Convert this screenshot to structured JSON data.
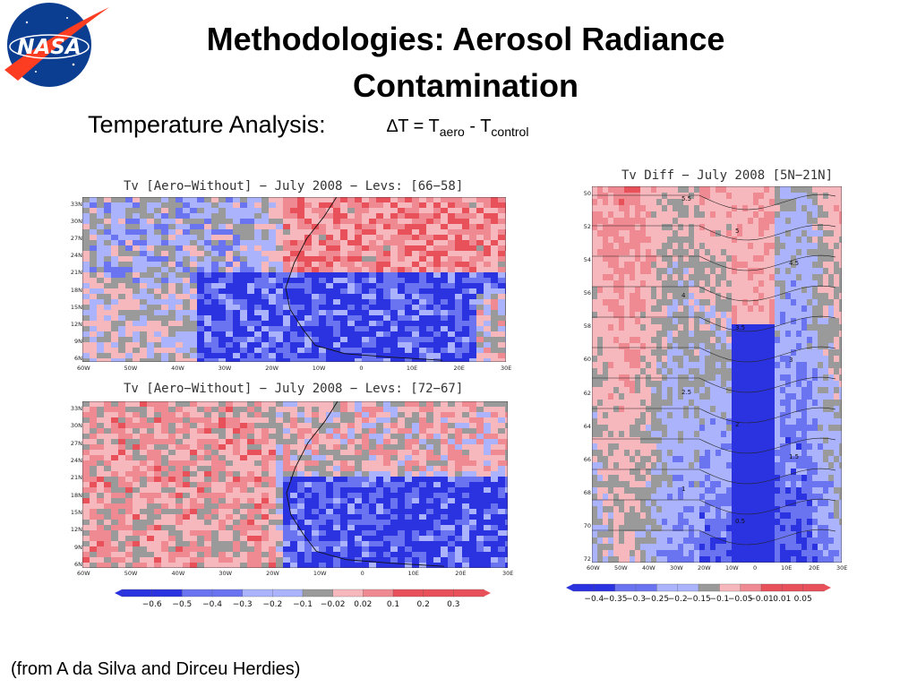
{
  "slide": {
    "title": "Methodologies: Aerosol Radiance Contamination",
    "subtitle": "Temperature Analysis:",
    "formula": {
      "delta": "∆T = T",
      "sub1": "aero",
      "minus": " - T",
      "sub2": "control"
    },
    "credit": "(from A da Silva and Dirceu Herdies)",
    "logo_text": "NASA"
  },
  "colors": {
    "logo_blue": "#0b3d91",
    "logo_red": "#fc3d21",
    "neg_strong": "#2b33e0",
    "neg_mid": "#6b74f0",
    "neg_weak": "#aab3fb",
    "neutral": "#9a9a9a",
    "pos_weak": "#f7b8bd",
    "pos_mid": "#f08a92",
    "pos_strong": "#e8505a"
  },
  "maps": [
    {
      "title": "Tv [Aero−Without] − July 2008 − Levs: [66−58]",
      "lat_labels": [
        "33N",
        "30N",
        "27N",
        "24N",
        "21N",
        "18N",
        "15N",
        "12N",
        "9N",
        "6N"
      ],
      "lon_labels": [
        "60W",
        "50W",
        "40W",
        "30W",
        "20W",
        "10W",
        "0",
        "10E",
        "20E",
        "30E"
      ]
    },
    {
      "title": "Tv [Aero−Without] − July 2008 − Levs: [72−67]",
      "lat_labels": [
        "33N",
        "30N",
        "27N",
        "24N",
        "21N",
        "18N",
        "15N",
        "12N",
        "9N",
        "6N"
      ],
      "lon_labels": [
        "60W",
        "50W",
        "40W",
        "30W",
        "20W",
        "10W",
        "0",
        "10E",
        "20E",
        "30E"
      ]
    }
  ],
  "map_colorbar": [
    "−0.6",
    "−0.5",
    "−0.4",
    "−0.3",
    "−0.2",
    "−0.1",
    "−0.02",
    "0.02",
    "0.1",
    "0.2",
    "0.3"
  ],
  "diff": {
    "title": "Tv Diff − July 2008 [5N−21N]",
    "level_labels": [
      "50",
      "52",
      "54",
      "56",
      "58",
      "60",
      "62",
      "64",
      "66",
      "68",
      "70",
      "72"
    ],
    "lon_labels": [
      "60W",
      "50W",
      "40W",
      "30W",
      "20W",
      "10W",
      "0",
      "10E",
      "20E",
      "30E"
    ],
    "contour_labels": [
      "5.5",
      "5",
      "4.5",
      "4",
      "3.5",
      "3",
      "2.5",
      "2",
      "1.5",
      "1",
      "0.5"
    ],
    "colorbar": [
      "−0.4",
      "−0.35",
      "−0.3",
      "−0.25",
      "−0.2",
      "−0.15",
      "−0.1",
      "−0.05",
      "−0.01",
      "0.01",
      "0.05"
    ]
  }
}
